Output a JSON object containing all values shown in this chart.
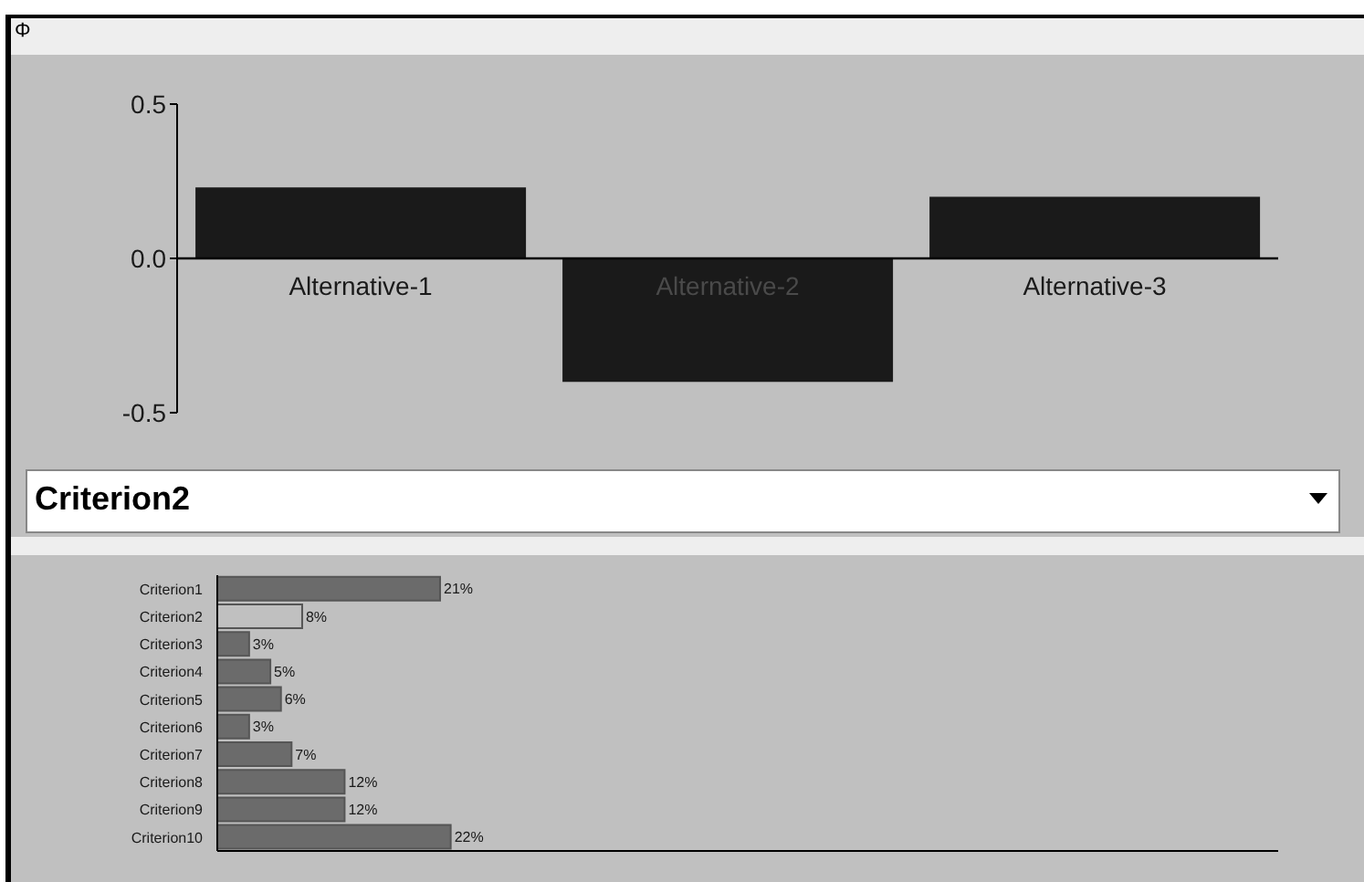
{
  "chart_data": [
    {
      "type": "bar",
      "title": "Φ",
      "categories": [
        "Alternative-1",
        "Alternative-2",
        "Alternative-3"
      ],
      "values": [
        0.23,
        -0.4,
        0.2
      ],
      "color": "#1a1a1a",
      "ylim": [
        -0.5,
        0.5
      ],
      "yticks": [
        -0.5,
        {
          "value": 0,
          "label": "0.0"
        },
        0.5
      ]
    },
    {
      "type": "bar",
      "orientation": "horizontal",
      "title": "Criterion2",
      "categories": [
        "Criterion1",
        "Criterion2",
        "Criterion3",
        "Criterion4",
        "Criterion5",
        "Criterion6",
        "Criterion7",
        "Criterion8",
        "Criterion9",
        "Criterion10"
      ],
      "values": [
        21,
        8,
        3,
        5,
        6,
        3,
        7,
        12,
        12,
        22
      ],
      "colors": [
        "#6b6b6b",
        "#c0c0c0",
        "#6b6b6b",
        "#6b6b6b",
        "#6b6b6b",
        "#6b6b6b",
        "#6b6b6b",
        "#6b6b6b",
        "#6b6b6b",
        "#6b6b6b"
      ],
      "value_labels": [
        "21%",
        "8%",
        "3%",
        "5%",
        "6%",
        "3%",
        "7%",
        "12%",
        "12%",
        "22%"
      ],
      "xlim": [
        0,
        100
      ],
      "tick_labels": "y"
    }
  ]
}
